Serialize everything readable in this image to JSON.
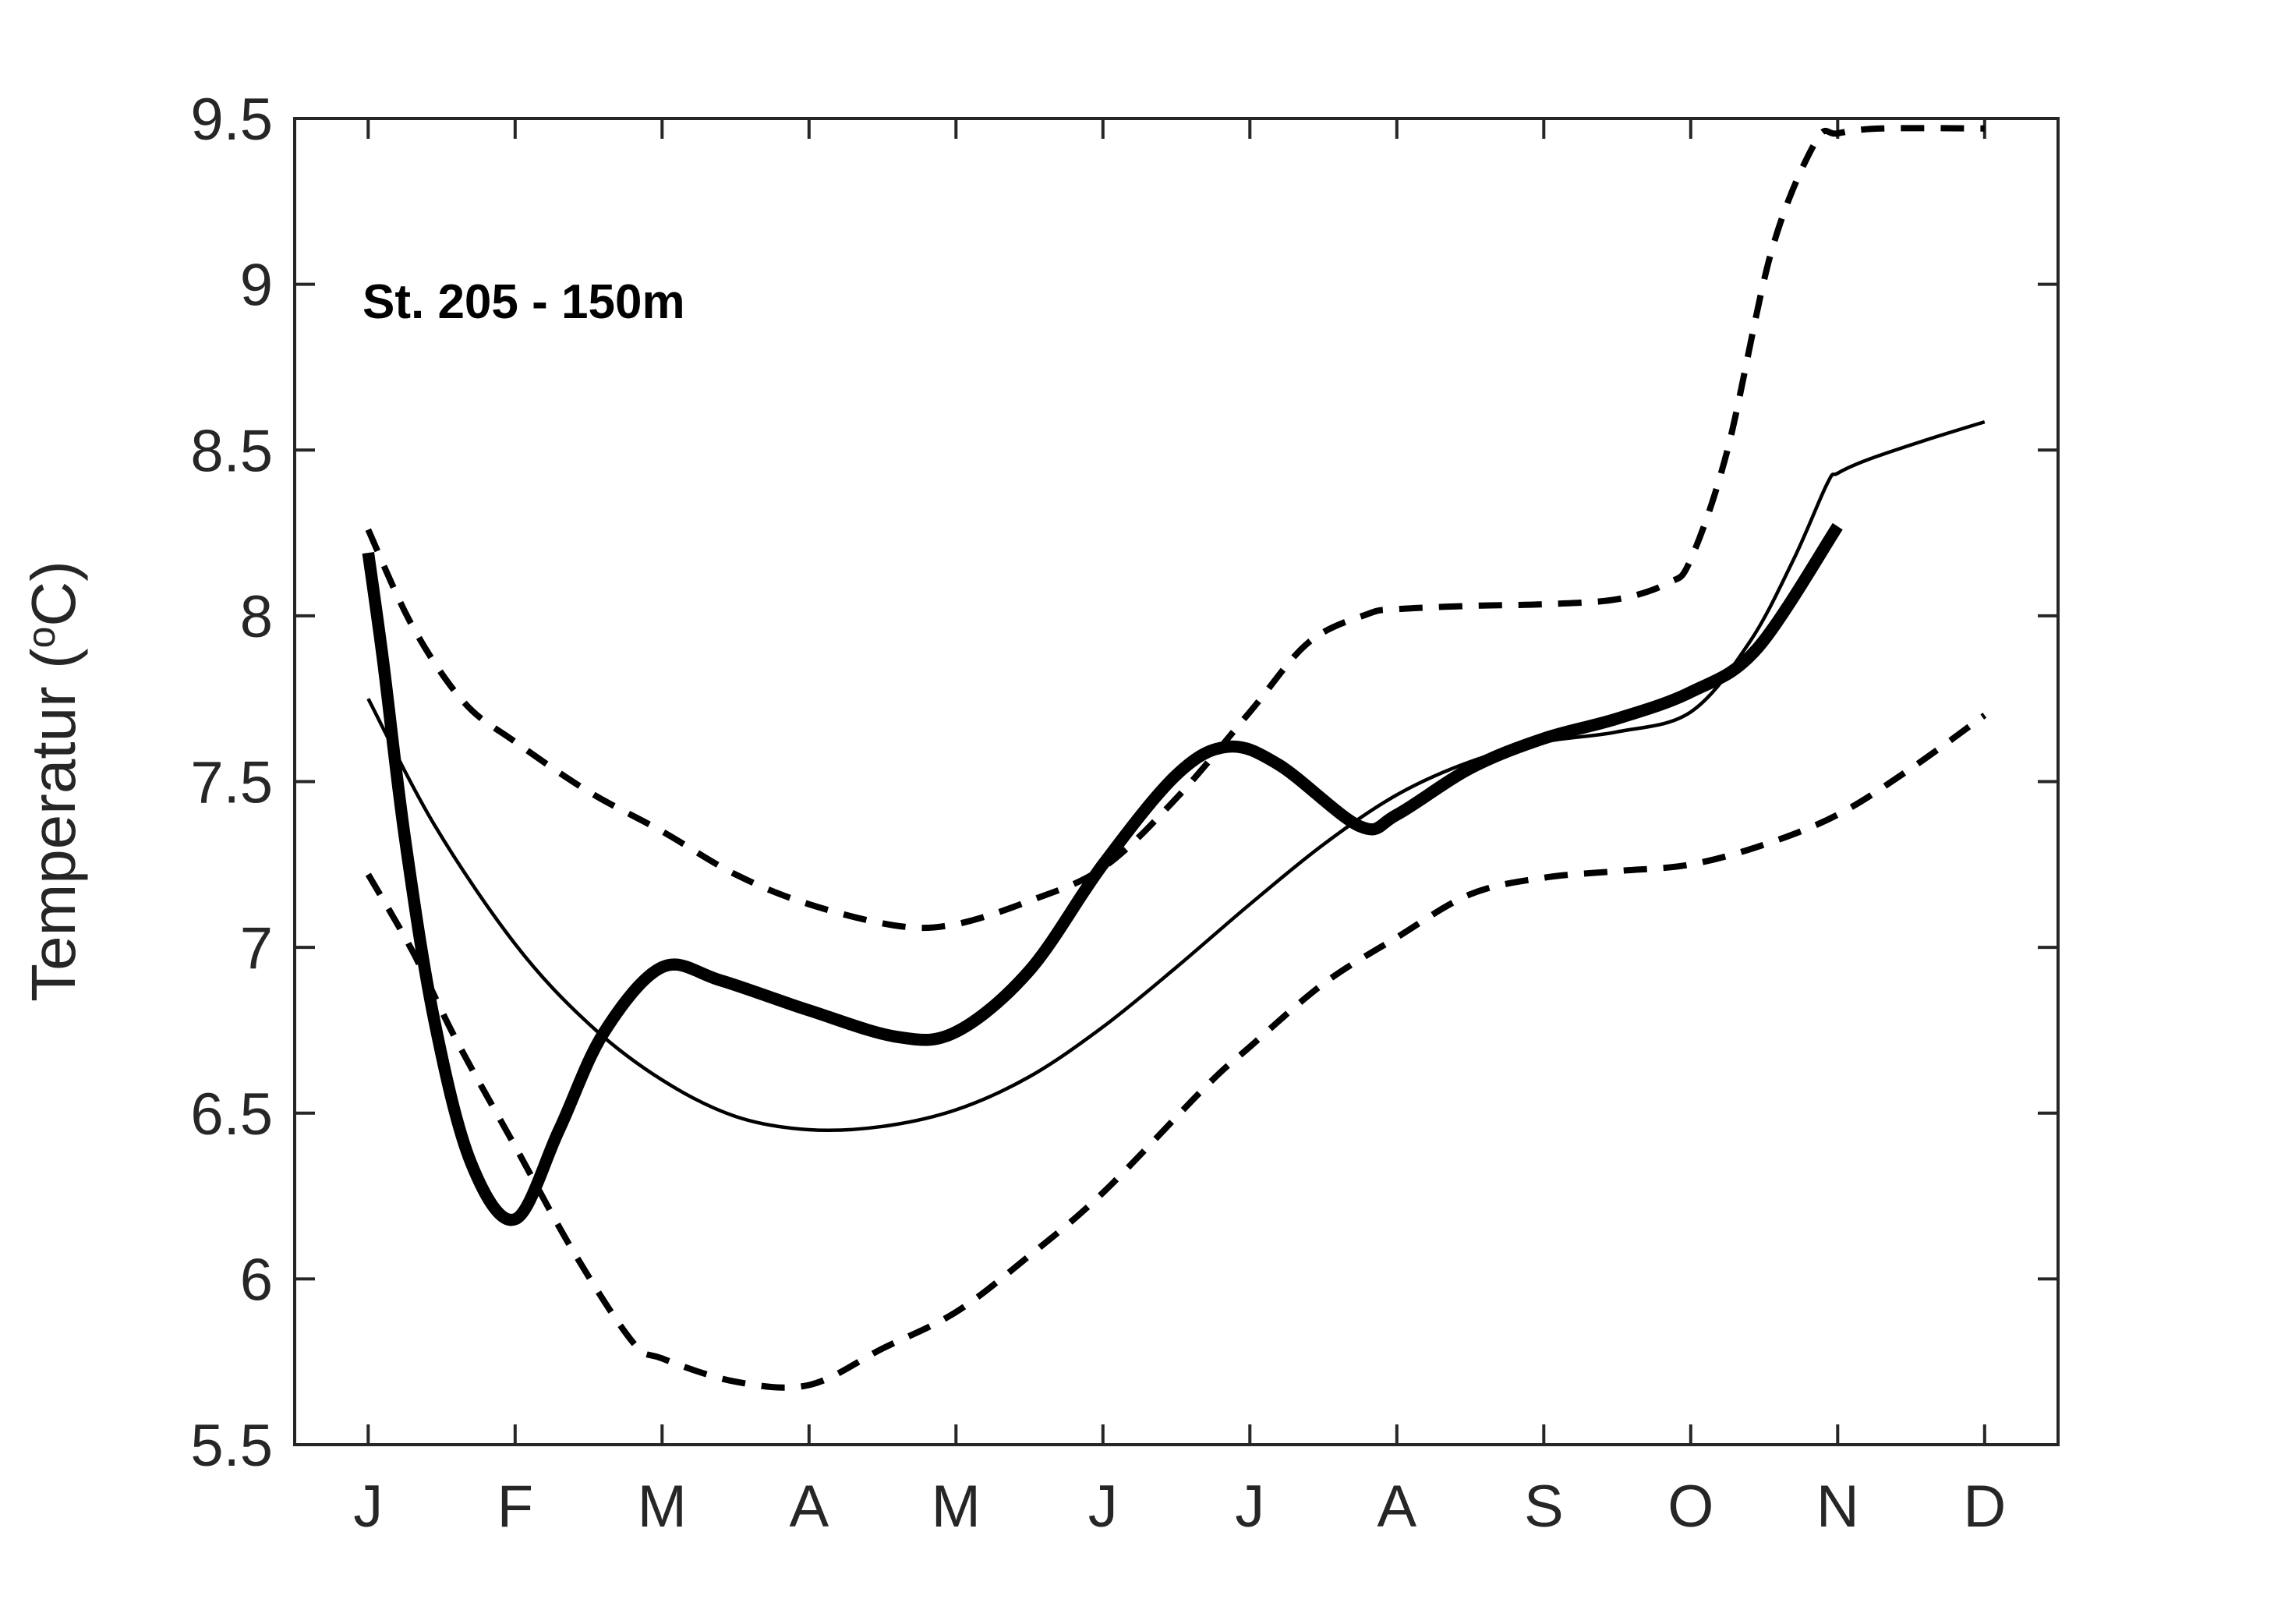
{
  "figure": {
    "title": "St. 205 - 150m",
    "background_color": "#ffffff",
    "line_color": "#000000",
    "axis_color": "#262626"
  },
  "axes": {
    "ylabel_prefix": "Temperatur (",
    "ylabel_sup": "o",
    "ylabel_suffix": "C)",
    "y_tick_labels": [
      "5.5",
      "6",
      "6.5",
      "7",
      "7.5",
      "8",
      "8.5",
      "9",
      "9.5"
    ],
    "x_tick_labels": [
      "J",
      "F",
      "M",
      "A",
      "M",
      "J",
      "J",
      "A",
      "S",
      "O",
      "N",
      "D"
    ]
  },
  "chart_data": {
    "type": "line",
    "title": "St. 205 - 150m",
    "xlabel": "",
    "ylabel": "Temperatur (°C)",
    "x_categories": [
      "J",
      "F",
      "M",
      "A",
      "M",
      "J",
      "J",
      "A",
      "S",
      "O",
      "N",
      "D"
    ],
    "ylim": [
      5.5,
      9.5
    ],
    "y_ticks": [
      5.5,
      6,
      6.5,
      7,
      7.5,
      8,
      8.5,
      9,
      9.5
    ],
    "grid": false,
    "legend": false,
    "series": [
      {
        "name": "thick-solid-line",
        "description": "thick solid temperature curve, January through November",
        "linestyle": "solid",
        "linewidth": "thick",
        "monthly_values": [
          8.19,
          6.18,
          6.94,
          6.81,
          6.74,
          7.25,
          7.59,
          7.4,
          7.63,
          7.77,
          8.27,
          null
        ],
        "control_points": [
          [
            1,
            8.19
          ],
          [
            1.1,
            7.87
          ],
          [
            1.25,
            7.33
          ],
          [
            1.45,
            6.78
          ],
          [
            1.7,
            6.35
          ],
          [
            2,
            6.18
          ],
          [
            2.3,
            6.45
          ],
          [
            2.6,
            6.74
          ],
          [
            3,
            6.94
          ],
          [
            3.4,
            6.9
          ],
          [
            4,
            6.81
          ],
          [
            4.6,
            6.73
          ],
          [
            5,
            6.745
          ],
          [
            5.5,
            6.93
          ],
          [
            6,
            7.25
          ],
          [
            6.5,
            7.52
          ],
          [
            6.85,
            7.605
          ],
          [
            7.2,
            7.55
          ],
          [
            7.75,
            7.365
          ],
          [
            8,
            7.4
          ],
          [
            8.5,
            7.54
          ],
          [
            9,
            7.63
          ],
          [
            9.5,
            7.69
          ],
          [
            10,
            7.77
          ],
          [
            10.45,
            7.9
          ],
          [
            11,
            8.27
          ]
        ]
      },
      {
        "name": "thin-solid-line",
        "description": "thin solid mean temperature curve, January through December",
        "linestyle": "solid",
        "linewidth": "thin",
        "monthly_values": [
          7.75,
          7.01,
          6.6,
          6.45,
          6.51,
          6.76,
          7.13,
          7.46,
          7.62,
          7.71,
          8.43,
          8.58
        ],
        "control_points": [
          [
            1,
            7.75
          ],
          [
            1.45,
            7.37
          ],
          [
            2,
            7.01
          ],
          [
            2.5,
            6.77
          ],
          [
            3,
            6.6
          ],
          [
            3.5,
            6.49
          ],
          [
            4,
            6.45
          ],
          [
            4.5,
            6.46
          ],
          [
            5,
            6.51
          ],
          [
            5.5,
            6.61
          ],
          [
            6,
            6.76
          ],
          [
            6.5,
            6.94
          ],
          [
            7,
            7.13
          ],
          [
            7.5,
            7.31
          ],
          [
            8,
            7.46
          ],
          [
            8.5,
            7.56
          ],
          [
            9,
            7.62
          ],
          [
            9.5,
            7.65
          ],
          [
            10,
            7.71
          ],
          [
            10.4,
            7.92
          ],
          [
            10.7,
            8.17
          ],
          [
            10.93,
            8.4
          ],
          [
            11,
            8.43
          ],
          [
            11.2,
            8.47
          ],
          [
            11.6,
            8.53
          ],
          [
            12,
            8.585
          ]
        ]
      },
      {
        "name": "dashed-upper-line",
        "description": "upper dashed envelope curve, January through December",
        "linestyle": "dashed",
        "linewidth": "medium",
        "monthly_values": [
          8.26,
          7.62,
          7.35,
          7.13,
          7.07,
          7.24,
          7.71,
          8.02,
          8.03,
          8.17,
          9.46,
          9.47
        ],
        "control_points": [
          [
            1,
            8.26
          ],
          [
            1.3,
            7.97
          ],
          [
            1.65,
            7.74
          ],
          [
            2,
            7.62
          ],
          [
            2.5,
            7.47
          ],
          [
            3,
            7.35
          ],
          [
            3.5,
            7.22
          ],
          [
            4,
            7.13
          ],
          [
            4.6,
            7.065
          ],
          [
            5,
            7.07
          ],
          [
            5.5,
            7.14
          ],
          [
            6,
            7.24
          ],
          [
            6.5,
            7.45
          ],
          [
            7,
            7.71
          ],
          [
            7.4,
            7.92
          ],
          [
            7.8,
            8.005
          ],
          [
            8,
            8.02
          ],
          [
            8.5,
            8.03
          ],
          [
            9,
            8.035
          ],
          [
            9.5,
            8.05
          ],
          [
            9.85,
            8.1
          ],
          [
            10,
            8.17
          ],
          [
            10.25,
            8.5
          ],
          [
            10.55,
            9.1
          ],
          [
            10.85,
            9.43
          ],
          [
            11,
            9.455
          ],
          [
            11.3,
            9.47
          ],
          [
            12,
            9.47
          ]
        ]
      },
      {
        "name": "dashed-lower-line",
        "description": "lower dashed envelope curve, January through December",
        "linestyle": "dashed",
        "linewidth": "medium",
        "monthly_values": [
          7.22,
          6.4,
          5.76,
          5.68,
          5.9,
          6.26,
          6.7,
          7.03,
          7.21,
          7.25,
          7.4,
          7.7
        ],
        "control_points": [
          [
            1,
            7.22
          ],
          [
            1.3,
            6.99
          ],
          [
            1.6,
            6.72
          ],
          [
            2,
            6.4
          ],
          [
            2.4,
            6.08
          ],
          [
            2.8,
            5.81
          ],
          [
            3,
            5.76
          ],
          [
            3.5,
            5.69
          ],
          [
            4,
            5.68
          ],
          [
            4.5,
            5.79
          ],
          [
            5,
            5.9
          ],
          [
            5.5,
            6.07
          ],
          [
            6,
            6.26
          ],
          [
            6.7,
            6.58
          ],
          [
            7,
            6.7
          ],
          [
            7.5,
            6.89
          ],
          [
            8,
            7.03
          ],
          [
            8.5,
            7.16
          ],
          [
            9,
            7.21
          ],
          [
            9.5,
            7.23
          ],
          [
            10,
            7.25
          ],
          [
            10.5,
            7.31
          ],
          [
            11,
            7.4
          ],
          [
            11.5,
            7.54
          ],
          [
            12,
            7.7
          ]
        ]
      }
    ]
  }
}
